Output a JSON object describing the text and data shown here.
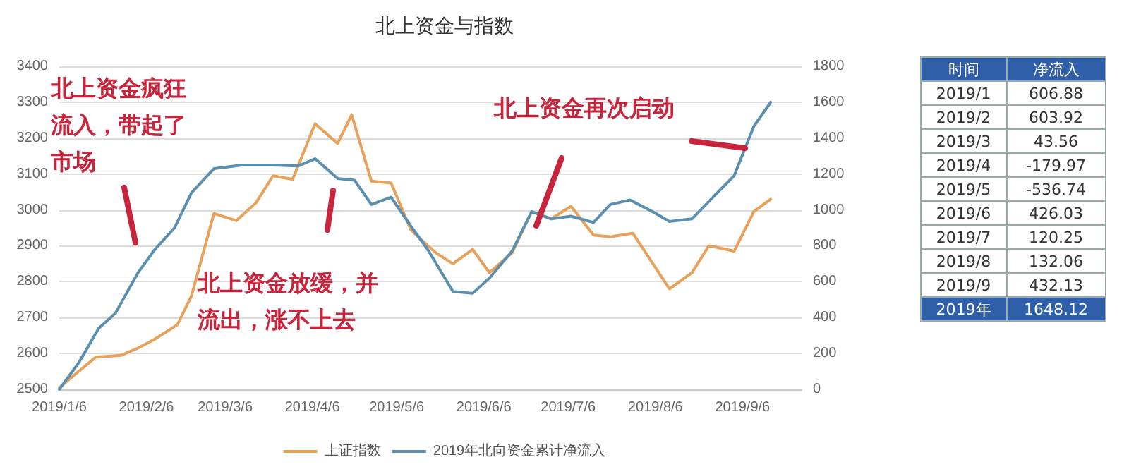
{
  "chart_data": [
    {
      "type": "line",
      "title": "北上资金与指数",
      "legend": "bottom",
      "grid": "y",
      "marker": "none",
      "line_style": "solid",
      "xlim": [
        "2019-01-06",
        "2019-09-27"
      ],
      "xticks": [
        {
          "value": "2019-01-06",
          "label": "2019/1/6"
        },
        {
          "value": "2019-02-06",
          "label": "2019/2/6"
        },
        {
          "value": "2019-03-06",
          "label": "2019/3/6"
        },
        {
          "value": "2019-04-06",
          "label": "2019/4/6"
        },
        {
          "value": "2019-05-06",
          "label": "2019/5/6"
        },
        {
          "value": "2019-06-06",
          "label": "2019/6/6"
        },
        {
          "value": "2019-07-06",
          "label": "2019/7/6"
        },
        {
          "value": "2019-08-06",
          "label": "2019/8/6"
        },
        {
          "value": "2019-09-06",
          "label": "2019/9/6"
        }
      ],
      "ylim": [
        2500,
        3400
      ],
      "yticks": [
        2500,
        2600,
        2700,
        2800,
        2900,
        3000,
        3100,
        3200,
        3300,
        3400
      ],
      "y2lim": [
        0,
        1800
      ],
      "y2ticks": [
        0,
        200,
        400,
        600,
        800,
        1000,
        1200,
        1400,
        1600,
        1800
      ],
      "series": [
        {
          "name": "上证指数",
          "color": "#e8a15a",
          "x": [
            "2019-01-06",
            "2019-01-19",
            "2019-01-28",
            "2019-02-03",
            "2019-02-09",
            "2019-02-17",
            "2019-02-22",
            "2019-03-02",
            "2019-03-10",
            "2019-03-17",
            "2019-03-23",
            "2019-03-30",
            "2019-04-07",
            "2019-04-15",
            "2019-04-20",
            "2019-04-27",
            "2019-05-04",
            "2019-05-11",
            "2019-05-15",
            "2019-05-20",
            "2019-05-26",
            "2019-06-02",
            "2019-06-08",
            "2019-06-16",
            "2019-06-23",
            "2019-06-30",
            "2019-07-07",
            "2019-07-15",
            "2019-07-21",
            "2019-07-29",
            "2019-08-11",
            "2019-08-19",
            "2019-08-25",
            "2019-09-03",
            "2019-09-10",
            "2019-09-16"
          ],
          "values": [
            2505,
            2590,
            2595,
            2615,
            2640,
            2680,
            2760,
            2990,
            2970,
            3020,
            3095,
            3085,
            3240,
            3185,
            3265,
            3080,
            3075,
            2945,
            2915,
            2880,
            2850,
            2890,
            2825,
            2880,
            2995,
            2975,
            3010,
            2930,
            2925,
            2935,
            2780,
            2825,
            2900,
            2885,
            2995,
            3030
          ]
        },
        {
          "name": "2019年北向资金累计净流入",
          "color": "#5b8fb0",
          "axis": "y2",
          "x": [
            "2019-01-06",
            "2019-01-13",
            "2019-01-20",
            "2019-01-26",
            "2019-02-03",
            "2019-02-09",
            "2019-02-16",
            "2019-02-22",
            "2019-03-02",
            "2019-03-12",
            "2019-03-23",
            "2019-04-01",
            "2019-04-07",
            "2019-04-15",
            "2019-04-21",
            "2019-04-27",
            "2019-05-04",
            "2019-05-11",
            "2019-05-17",
            "2019-05-26",
            "2019-06-02",
            "2019-06-08",
            "2019-06-16",
            "2019-06-23",
            "2019-06-30",
            "2019-07-07",
            "2019-07-15",
            "2019-07-21",
            "2019-07-28",
            "2019-08-05",
            "2019-08-11",
            "2019-08-19",
            "2019-08-28",
            "2019-09-03",
            "2019-09-10",
            "2019-09-16"
          ],
          "values": [
            0,
            150,
            340,
            425,
            650,
            780,
            900,
            1095,
            1230,
            1250,
            1250,
            1245,
            1285,
            1175,
            1165,
            1030,
            1070,
            910,
            780,
            545,
            535,
            620,
            770,
            990,
            950,
            965,
            930,
            1030,
            1055,
            990,
            935,
            950,
            1095,
            1190,
            1465,
            1600
          ]
        }
      ],
      "annotations": [
        "北上资金疯狂流入，带起了市场",
        "北上资金放缓，并流出，涨不上去",
        "北上资金再次启动"
      ]
    },
    {
      "type": "other",
      "xlabel": "时间",
      "ylabel": "净流入",
      "data_labels": true,
      "categories": [
        "2019/1",
        "2019/2",
        "2019/3",
        "2019/4",
        "2019/5",
        "2019/6",
        "2019/7",
        "2019/8",
        "2019/9",
        "2019年"
      ],
      "values": [
        606.88,
        603.92,
        43.56,
        -179.97,
        -536.74,
        426.03,
        120.25,
        132.06,
        432.13,
        1648.12
      ]
    }
  ]
}
